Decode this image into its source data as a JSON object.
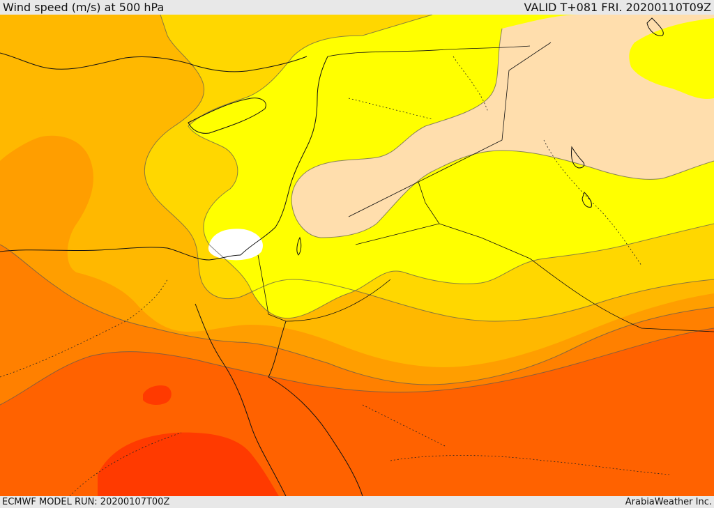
{
  "header": {
    "title": "Wind speed (m/s) at 500 hPa",
    "valid": "VALID T+081 FRI. 20200110T09Z"
  },
  "footer": {
    "model_run": "ECMWF MODEL RUN: 20200107T00Z",
    "brand": "ArabiaWeather Inc."
  },
  "colors": {
    "white": "#ffffff",
    "wheat": "#ffdead",
    "yellow": "#ffff00",
    "gold": "#ffd700",
    "amber": "#ffb800",
    "orange": "#ff9e00",
    "dark_orange": "#ff8000",
    "red_orange": "#ff6200",
    "red": "#ff3a00"
  }
}
